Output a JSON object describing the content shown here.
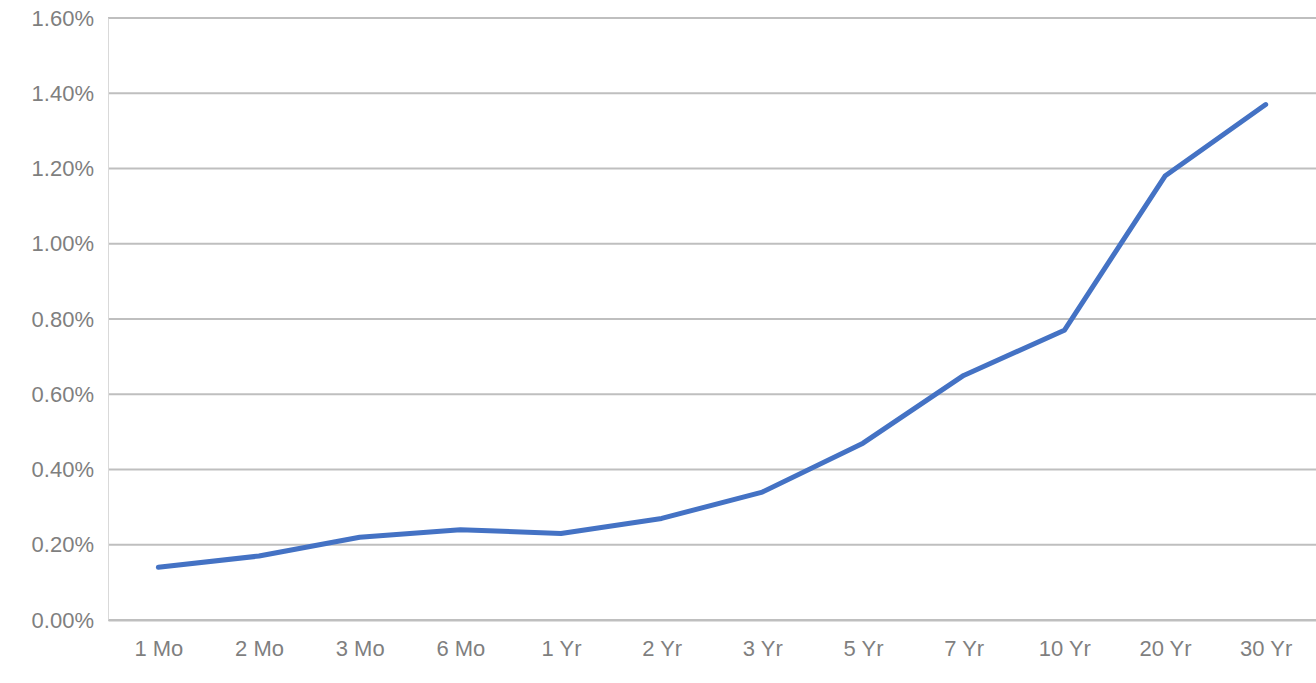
{
  "chart_data": {
    "type": "line",
    "categories": [
      "1 Mo",
      "2 Mo",
      "3 Mo",
      "6 Mo",
      "1 Yr",
      "2 Yr",
      "3 Yr",
      "5 Yr",
      "7 Yr",
      "10 Yr",
      "20 Yr",
      "30 Yr"
    ],
    "values": [
      0.14,
      0.17,
      0.22,
      0.24,
      0.23,
      0.27,
      0.34,
      0.47,
      0.65,
      0.77,
      1.18,
      1.37
    ],
    "color": "#4472c4",
    "ylim": [
      0,
      1.6
    ],
    "yticks": [
      {
        "value": 0,
        "label": "0.00%"
      },
      {
        "value": 0.2,
        "label": "0.20%"
      },
      {
        "value": 0.4,
        "label": "0.40%"
      },
      {
        "value": 0.6,
        "label": "0.60%"
      },
      {
        "value": 0.8,
        "label": "0.80%"
      },
      {
        "value": 1.0,
        "label": "1.00%"
      },
      {
        "value": 1.2,
        "label": "1.20%"
      },
      {
        "value": 1.4,
        "label": "1.40%"
      },
      {
        "value": 1.6,
        "label": "1.60%"
      }
    ],
    "grid": true
  }
}
